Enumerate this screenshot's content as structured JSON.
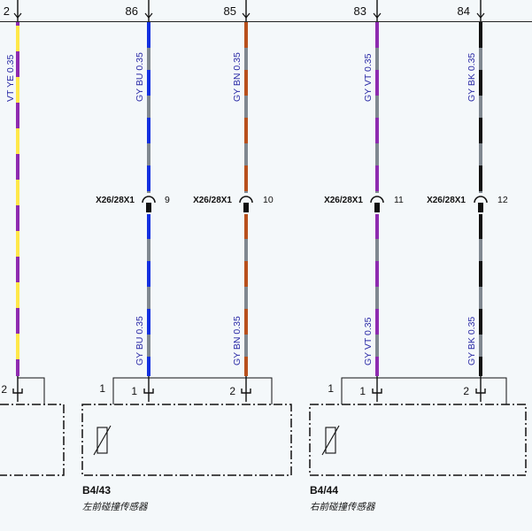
{
  "wires": [
    {
      "top_pin": "2",
      "label": "VT YE 0.35",
      "colors": [
        "#8e2bb0",
        "#ffe84a"
      ]
    },
    {
      "top_pin": "86",
      "label_top": "GY BU 0.35",
      "label_bottom": "GY BU 0.35",
      "connector": "X26/28X1",
      "conn_pin": "9",
      "bottom_pin": "1",
      "colors": [
        "#808890",
        "#1230e0"
      ]
    },
    {
      "top_pin": "85",
      "label_top": "GY BN 0.35",
      "label_bottom": "GY BN 0.35",
      "connector": "X26/28X1",
      "conn_pin": "10",
      "bottom_pin": "2",
      "colors": [
        "#808890",
        "#b8501c"
      ]
    },
    {
      "top_pin": "83",
      "label_top": "GY VT 0.35",
      "label_bottom": "GY VT 0.35",
      "connector": "X26/28X1",
      "conn_pin": "11",
      "bottom_pin": "1",
      "colors": [
        "#808890",
        "#8e2bb0"
      ]
    },
    {
      "top_pin": "84",
      "label_top": "GY BK 0.35",
      "label_bottom": "GY BK 0.35",
      "connector": "X26/28X1",
      "conn_pin": "12",
      "bottom_pin": "2",
      "colors": [
        "#808890",
        "#111111"
      ]
    }
  ],
  "left_partial": {
    "bottom_pin": "2"
  },
  "components": [
    {
      "code": "B4/43",
      "name": "左前碰撞传感器",
      "side_pin": "1"
    },
    {
      "code": "B4/44",
      "name": "右前碰撞传感器",
      "side_pin": "1"
    }
  ]
}
